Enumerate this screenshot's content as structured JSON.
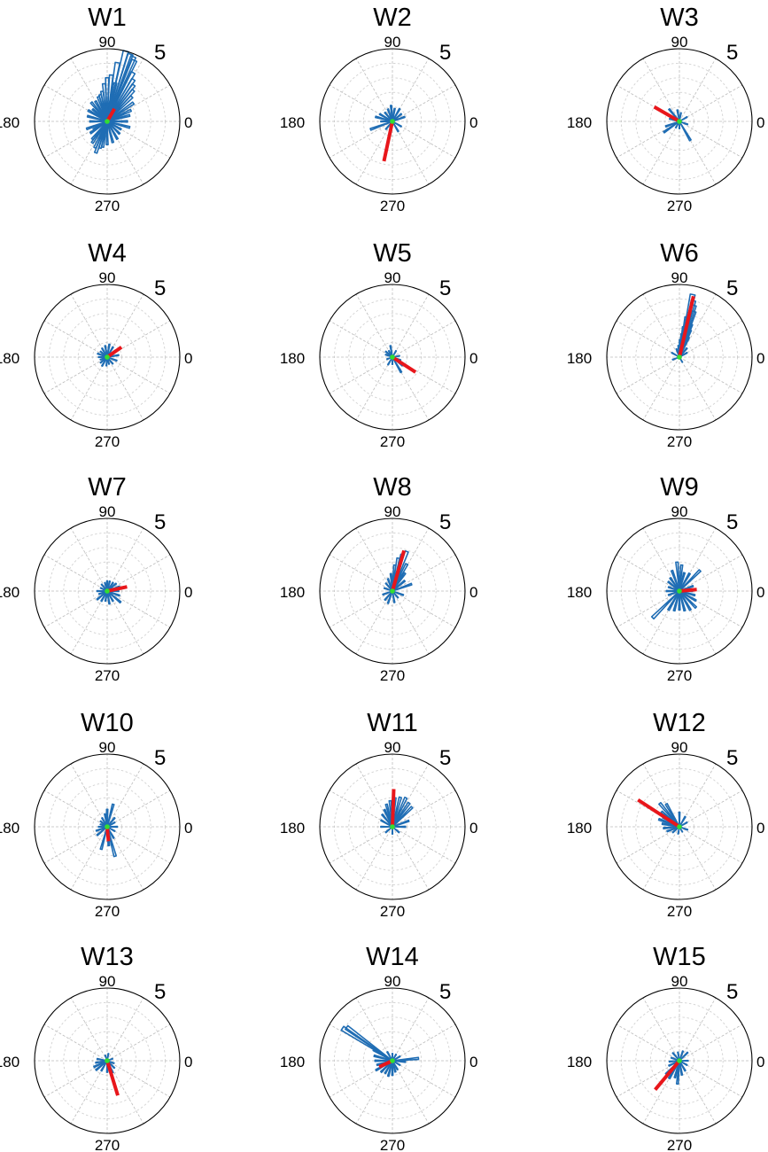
{
  "figure": {
    "angle_labels": [
      "0",
      "90",
      "180",
      "270"
    ],
    "radial_max_label": "5"
  },
  "colors": {
    "bars": "#1f6db4",
    "mean_vector": "#e8161b",
    "center_marker": "#33dd33",
    "rings": "#d2d2d2",
    "spokes": "#bcbcbc",
    "outer_circle": "#000000"
  },
  "chart_data": [
    {
      "type": "polar-histogram",
      "title": "W1",
      "rmax": 5,
      "grid": true,
      "bars": [
        [
          75,
          5
        ],
        [
          71,
          4.9
        ],
        [
          68,
          4.8
        ],
        [
          66,
          4.6
        ],
        [
          80,
          4.1
        ],
        [
          62,
          3.8
        ],
        [
          58,
          3.4
        ],
        [
          85,
          3.2
        ],
        [
          54,
          3.1
        ],
        [
          90,
          3
        ],
        [
          50,
          2.8
        ],
        [
          78,
          2.7
        ],
        [
          95,
          2.6
        ],
        [
          45,
          2.4
        ],
        [
          35,
          2.2
        ],
        [
          100,
          2.1
        ],
        [
          105,
          1.9
        ],
        [
          130,
          1.7
        ],
        [
          150,
          1.5
        ],
        [
          165,
          1.4
        ],
        [
          180,
          1.2
        ],
        [
          200,
          1.5
        ],
        [
          215,
          1.4
        ],
        [
          230,
          1.6
        ],
        [
          245,
          2
        ],
        [
          250,
          2.3
        ],
        [
          255,
          1.9
        ],
        [
          260,
          1.8
        ],
        [
          270,
          1.6
        ],
        [
          285,
          1.5
        ],
        [
          300,
          1.4
        ],
        [
          315,
          1.2
        ],
        [
          330,
          1.1
        ],
        [
          345,
          1.6
        ],
        [
          0,
          1.4
        ],
        [
          15,
          1.6
        ],
        [
          25,
          1.8
        ],
        [
          110,
          1.8
        ],
        [
          120,
          1.6
        ],
        [
          140,
          1.3
        ],
        [
          210,
          1.1
        ],
        [
          235,
          1.8
        ]
      ],
      "mean_vector": [
        60,
        1.0
      ]
    },
    {
      "type": "polar-histogram",
      "title": "W2",
      "rmax": 5,
      "grid": true,
      "bars": [
        [
          95,
          1.1
        ],
        [
          110,
          0.9
        ],
        [
          130,
          0.8
        ],
        [
          150,
          1
        ],
        [
          165,
          1.2
        ],
        [
          180,
          0.8
        ],
        [
          200,
          1.6
        ],
        [
          230,
          0.7
        ],
        [
          260,
          0.9
        ],
        [
          300,
          0.8
        ],
        [
          330,
          0.7
        ],
        [
          20,
          0.9
        ],
        [
          40,
          0.8
        ],
        [
          60,
          1
        ],
        [
          80,
          0.9
        ]
      ],
      "mean_vector": [
        258,
        2.8
      ]
    },
    {
      "type": "polar-histogram",
      "title": "W3",
      "rmax": 5,
      "grid": true,
      "bars": [
        [
          130,
          1.1
        ],
        [
          150,
          0.9
        ],
        [
          165,
          0.7
        ],
        [
          200,
          1
        ],
        [
          215,
          1.3
        ],
        [
          300,
          1.5
        ],
        [
          30,
          0.6
        ],
        [
          80,
          0.6
        ],
        [
          100,
          0.8
        ],
        [
          240,
          0.5
        ],
        [
          270,
          0.5
        ],
        [
          340,
          0.6
        ]
      ],
      "mean_vector": [
        150,
        2.0
      ]
    },
    {
      "type": "polar-histogram",
      "title": "W4",
      "rmax": 5,
      "grid": true,
      "bars": [
        [
          60,
          0.8
        ],
        [
          80,
          0.9
        ],
        [
          100,
          0.8
        ],
        [
          120,
          0.7
        ],
        [
          140,
          0.6
        ],
        [
          160,
          0.7
        ],
        [
          180,
          0.6
        ],
        [
          200,
          0.5
        ],
        [
          220,
          0.6
        ],
        [
          240,
          0.7
        ],
        [
          265,
          0.6
        ],
        [
          285,
          0.5
        ],
        [
          310,
          0.6
        ],
        [
          340,
          0.7
        ],
        [
          10,
          0.8
        ],
        [
          40,
          0.7
        ]
      ],
      "mean_vector": [
        35,
        1.2
      ]
    },
    {
      "type": "polar-histogram",
      "title": "W5",
      "rmax": 5,
      "grid": true,
      "bars": [
        [
          100,
          0.8
        ],
        [
          120,
          0.5
        ],
        [
          140,
          0.6
        ],
        [
          160,
          0.5
        ],
        [
          200,
          0.4
        ],
        [
          240,
          0.6
        ],
        [
          270,
          0.5
        ],
        [
          300,
          1.2
        ],
        [
          320,
          0.9
        ],
        [
          340,
          0.6
        ],
        [
          10,
          0.5
        ],
        [
          60,
          0.5
        ]
      ],
      "mean_vector": [
        327,
        1.9
      ]
    },
    {
      "type": "polar-histogram",
      "title": "W6",
      "rmax": 5,
      "grid": true,
      "bars": [
        [
          78,
          4.4
        ],
        [
          76,
          4.0
        ],
        [
          74,
          3.7
        ],
        [
          72,
          3.3
        ],
        [
          80,
          2.8
        ],
        [
          82,
          2.1
        ],
        [
          70,
          2.4
        ],
        [
          68,
          2.0
        ],
        [
          84,
          1.6
        ],
        [
          65,
          1.5
        ],
        [
          88,
          1.2
        ],
        [
          95,
          0.8
        ],
        [
          110,
          0.6
        ],
        [
          150,
          0.6
        ],
        [
          200,
          0.5
        ],
        [
          300,
          0.4
        ],
        [
          30,
          0.6
        ],
        [
          50,
          0.8
        ]
      ],
      "mean_vector": [
        77,
        4.3
      ]
    },
    {
      "type": "polar-histogram",
      "title": "W7",
      "rmax": 5,
      "grid": true,
      "bars": [
        [
          75,
          0.7
        ],
        [
          90,
          0.7
        ],
        [
          105,
          0.6
        ],
        [
          130,
          0.6
        ],
        [
          155,
          0.5
        ],
        [
          180,
          0.7
        ],
        [
          200,
          0.6
        ],
        [
          220,
          0.9
        ],
        [
          240,
          0.8
        ],
        [
          260,
          0.7
        ],
        [
          280,
          0.9
        ],
        [
          300,
          0.8
        ],
        [
          320,
          1.2
        ],
        [
          340,
          0.9
        ],
        [
          0,
          0.8
        ],
        [
          20,
          0.9
        ],
        [
          40,
          0.8
        ],
        [
          55,
          0.7
        ]
      ],
      "mean_vector": [
        12,
        1.4
      ]
    },
    {
      "type": "polar-histogram",
      "title": "W8",
      "rmax": 5,
      "grid": true,
      "bars": [
        [
          70,
          2.9
        ],
        [
          75,
          2.6
        ],
        [
          80,
          2.3
        ],
        [
          85,
          1.8
        ],
        [
          95,
          1.2
        ],
        [
          110,
          0.9
        ],
        [
          130,
          0.7
        ],
        [
          160,
          0.6
        ],
        [
          200,
          0.7
        ],
        [
          230,
          0.8
        ],
        [
          250,
          0.9
        ],
        [
          280,
          0.8
        ],
        [
          310,
          0.6
        ],
        [
          340,
          0.8
        ],
        [
          20,
          1.4
        ],
        [
          40,
          1.1
        ],
        [
          55,
          1.5
        ],
        [
          62,
          2.1
        ]
      ],
      "mean_vector": [
        74,
        2.9
      ]
    },
    {
      "type": "polar-histogram",
      "title": "W9",
      "rmax": 5,
      "grid": true,
      "bars": [
        [
          45,
          2
        ],
        [
          60,
          1.4
        ],
        [
          75,
          1.3
        ],
        [
          85,
          1.8
        ],
        [
          95,
          2
        ],
        [
          110,
          1.5
        ],
        [
          125,
          1.1
        ],
        [
          140,
          1
        ],
        [
          160,
          0.8
        ],
        [
          180,
          0.9
        ],
        [
          200,
          0.8
        ],
        [
          225,
          2.6
        ],
        [
          240,
          1.5
        ],
        [
          255,
          1.4
        ],
        [
          270,
          1.3
        ],
        [
          285,
          1.4
        ],
        [
          300,
          1.5
        ],
        [
          315,
          1.6
        ],
        [
          330,
          1.3
        ],
        [
          345,
          1.1
        ],
        [
          0,
          0.9
        ],
        [
          20,
          1
        ]
      ],
      "mean_vector": [
        5,
        1.2
      ]
    },
    {
      "type": "polar-histogram",
      "title": "W10",
      "rmax": 5,
      "grid": true,
      "bars": [
        [
          75,
          1.6
        ],
        [
          90,
          1.2
        ],
        [
          100,
          0.9
        ],
        [
          120,
          0.7
        ],
        [
          140,
          0.6
        ],
        [
          160,
          0.5
        ],
        [
          180,
          0.6
        ],
        [
          200,
          0.8
        ],
        [
          220,
          0.9
        ],
        [
          255,
          1.6
        ],
        [
          275,
          1.3
        ],
        [
          285,
          2.1
        ],
        [
          300,
          0.9
        ],
        [
          330,
          0.6
        ],
        [
          0,
          0.7
        ],
        [
          30,
          0.6
        ],
        [
          50,
          0.8
        ]
      ],
      "mean_vector": [
        275,
        1.0
      ]
    },
    {
      "type": "polar-histogram",
      "title": "W11",
      "rmax": 5,
      "grid": true,
      "bars": [
        [
          45,
          1.9
        ],
        [
          55,
          2
        ],
        [
          65,
          2.2
        ],
        [
          75,
          2.1
        ],
        [
          85,
          2
        ],
        [
          95,
          1.8
        ],
        [
          105,
          1.6
        ],
        [
          115,
          1.3
        ],
        [
          130,
          1.1
        ],
        [
          150,
          0.9
        ],
        [
          180,
          0.8
        ],
        [
          220,
          0.6
        ],
        [
          270,
          0.5
        ],
        [
          320,
          0.6
        ],
        [
          0,
          0.9
        ],
        [
          20,
          1.2
        ]
      ],
      "mean_vector": [
        88,
        2.6
      ]
    },
    {
      "type": "polar-histogram",
      "title": "W12",
      "rmax": 5,
      "grid": true,
      "bars": [
        [
          120,
          1.8
        ],
        [
          130,
          2.1
        ],
        [
          140,
          1.6
        ],
        [
          150,
          1.3
        ],
        [
          160,
          1.5
        ],
        [
          170,
          1.2
        ],
        [
          185,
          1.1
        ],
        [
          200,
          0.9
        ],
        [
          220,
          0.6
        ],
        [
          260,
          0.5
        ],
        [
          300,
          0.4
        ],
        [
          340,
          0.6
        ],
        [
          30,
          0.6
        ],
        [
          60,
          0.8
        ],
        [
          90,
          1
        ]
      ],
      "mean_vector": [
        147,
        3.4
      ]
    },
    {
      "type": "polar-histogram",
      "title": "W13",
      "rmax": 5,
      "grid": true,
      "bars": [
        [
          80,
          0.5
        ],
        [
          110,
          0.4
        ],
        [
          170,
          0.7
        ],
        [
          190,
          0.8
        ],
        [
          205,
          1
        ],
        [
          220,
          1
        ],
        [
          240,
          0.8
        ],
        [
          270,
          0.8
        ],
        [
          295,
          0.9
        ],
        [
          315,
          0.7
        ],
        [
          340,
          0.5
        ],
        [
          20,
          0.4
        ]
      ],
      "mean_vector": [
        287,
        2.5
      ]
    },
    {
      "type": "polar-histogram",
      "title": "W14",
      "rmax": 5,
      "grid": true,
      "bars": [
        [
          147,
          4.1
        ],
        [
          144,
          3.9
        ],
        [
          150,
          1.5
        ],
        [
          165,
          1.3
        ],
        [
          180,
          1.2
        ],
        [
          195,
          1.1
        ],
        [
          210,
          1.3
        ],
        [
          225,
          1.1
        ],
        [
          240,
          1
        ],
        [
          255,
          1.1
        ],
        [
          270,
          1
        ],
        [
          285,
          0.8
        ],
        [
          300,
          0.7
        ],
        [
          330,
          0.6
        ],
        [
          355,
          0.9
        ],
        [
          5,
          1.8
        ],
        [
          30,
          0.6
        ],
        [
          60,
          0.5
        ],
        [
          90,
          0.5
        ],
        [
          120,
          0.7
        ]
      ],
      "mean_vector": [
        205,
        1.0
      ]
    },
    {
      "type": "polar-histogram",
      "title": "W15",
      "rmax": 5,
      "grid": true,
      "bars": [
        [
          45,
          0.8
        ],
        [
          70,
          0.7
        ],
        [
          100,
          0.6
        ],
        [
          130,
          0.7
        ],
        [
          160,
          0.6
        ],
        [
          185,
          0.7
        ],
        [
          205,
          0.8
        ],
        [
          225,
          1.3
        ],
        [
          240,
          1.4
        ],
        [
          255,
          1.2
        ],
        [
          265,
          1.6
        ],
        [
          280,
          1
        ],
        [
          300,
          0.8
        ],
        [
          330,
          0.6
        ],
        [
          0,
          0.6
        ]
      ],
      "mean_vector": [
        230,
        2.6
      ]
    }
  ]
}
